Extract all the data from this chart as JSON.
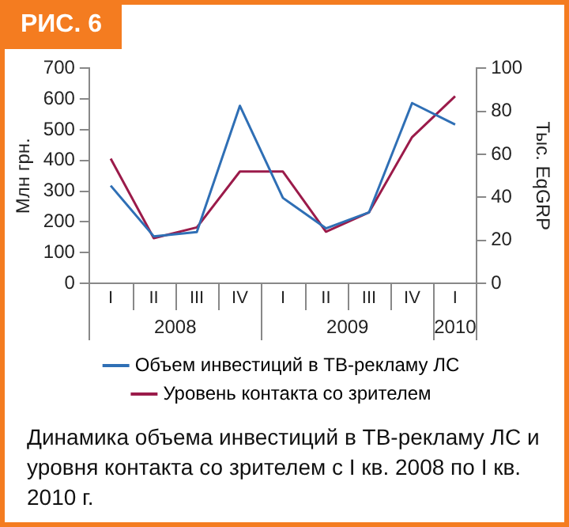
{
  "chart_data": {
    "type": "line",
    "title": "РИС. 6",
    "ylabel": "Млн грн.",
    "y2label": "Тыс. EqGRP",
    "categories": [
      "I",
      "II",
      "III",
      "IV",
      "I",
      "II",
      "III",
      "IV",
      "I"
    ],
    "series": [
      {
        "name": "Объем инвестиций в ТВ-рекламу ЛС",
        "color": "#2f6fb5",
        "values": [
          318,
          153,
          167,
          578,
          278,
          179,
          231,
          587,
          517
        ]
      },
      {
        "name": "Уровень контакта со зрителем",
        "color": "#9b1b4a",
        "axis": "y2",
        "values": [
          58,
          21,
          26,
          52,
          52,
          24,
          33,
          68,
          87
        ]
      }
    ],
    "ylim": [
      0,
      700
    ],
    "yticks": [
      0,
      100,
      200,
      300,
      400,
      500,
      600,
      700
    ],
    "y2lim": [
      0,
      100
    ],
    "y2ticks": [
      0,
      20,
      40,
      60,
      80,
      100
    ],
    "grid": false,
    "legend": "bottom",
    "marker": "none",
    "line_style": "solid",
    "annotations": [
      "2008",
      "2009",
      "2010",
      "Динамика объема инвестиций в ТВ-рекламу ЛС и уровня контакта со зрителем с I кв. 2008 по I кв. 2010 г."
    ]
  }
}
